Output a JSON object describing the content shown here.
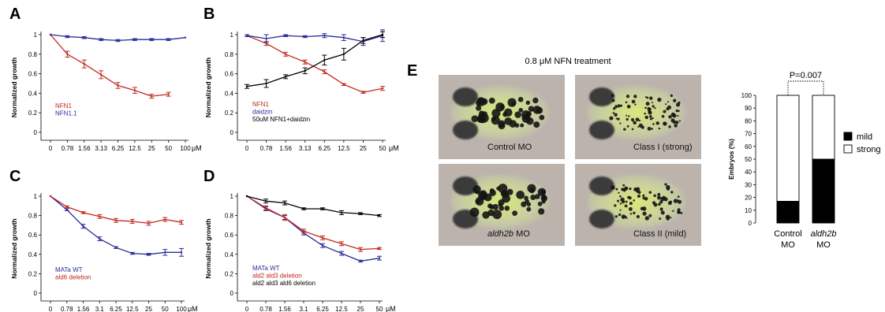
{
  "panels": {
    "A": "A",
    "B": "B",
    "C": "C",
    "D": "D",
    "E": "E"
  },
  "treatment_title": "0.8 μM NFN treatment",
  "photos": [
    {
      "label": "Control MO",
      "italic_prefix": ""
    },
    {
      "label": "Class I (strong)",
      "italic_prefix": ""
    },
    {
      "label": " MO",
      "italic_prefix": "aldh2b"
    },
    {
      "label": "Class II (mild)",
      "italic_prefix": ""
    }
  ],
  "colors": {
    "red": "#c0281c",
    "blue": "#2b2b9c",
    "black": "#000000"
  },
  "chart_data": [
    {
      "id": "A",
      "type": "line",
      "ylabel": "Normalized growth",
      "unit": "μM",
      "categories": [
        "0",
        "0.78",
        "1.56",
        "3.13",
        "6.25",
        "12.5",
        "25",
        "50",
        "100"
      ],
      "yticks": [
        "0",
        "0.2",
        "0.4",
        "0.6",
        "0.8",
        "1"
      ],
      "ylim": [
        0,
        1
      ],
      "series": [
        {
          "name": "NFN1",
          "color": "red",
          "values": [
            1.0,
            0.8,
            0.7,
            0.59,
            0.48,
            0.43,
            0.37,
            0.39,
            null
          ],
          "err": [
            0,
            0.03,
            0.04,
            0.04,
            0.03,
            0.03,
            0.02,
            0.02,
            0
          ]
        },
        {
          "name": "NFN1.1",
          "color": "blue",
          "values": [
            1.0,
            0.98,
            0.97,
            0.95,
            0.94,
            0.95,
            0.95,
            0.95,
            0.97
          ],
          "err": [
            0,
            0.01,
            0.01,
            0.01,
            0.01,
            0.01,
            0.01,
            0.01,
            0
          ]
        }
      ]
    },
    {
      "id": "B",
      "type": "line",
      "ylabel": "Normalized growth",
      "unit": "μM",
      "categories": [
        "0",
        "0.78",
        "1.56",
        "3.13",
        "6.25",
        "12.5",
        "25",
        "50"
      ],
      "yticks": [
        "0",
        "0.2",
        "0.4",
        "0.6",
        "0.8",
        "1"
      ],
      "ylim": [
        0,
        1
      ],
      "series": [
        {
          "name": "NFN1",
          "color": "red",
          "values": [
            0.99,
            0.91,
            0.8,
            0.72,
            0.62,
            0.49,
            0.41,
            0.45
          ],
          "err": [
            0.01,
            0.02,
            0.02,
            0.02,
            0.02,
            0.01,
            0.01,
            0.02
          ]
        },
        {
          "name": "daidzin",
          "color": "blue",
          "values": [
            0.99,
            0.96,
            0.99,
            0.98,
            0.99,
            0.97,
            0.93,
            0.99
          ],
          "err": [
            0.01,
            0.04,
            0.01,
            0.01,
            0.02,
            0.03,
            0.04,
            0.06
          ]
        },
        {
          "name": "50uM NFN1+daidzin",
          "color": "black",
          "values": [
            0.47,
            0.5,
            0.57,
            0.63,
            0.74,
            0.8,
            0.94,
            1.0
          ],
          "err": [
            0.02,
            0.04,
            0.02,
            0.03,
            0.05,
            0.06,
            0.03,
            0.03
          ]
        }
      ]
    },
    {
      "id": "C",
      "type": "line",
      "ylabel": "Normalized growth",
      "unit": "μM",
      "categories": [
        "0",
        "0.78",
        "1.56",
        "3.1",
        "6.25",
        "12.5",
        "25",
        "50",
        "100"
      ],
      "yticks": [
        "0",
        "0.2",
        "0.4",
        "0.6",
        "0.8",
        "1"
      ],
      "ylim": [
        0,
        1
      ],
      "series": [
        {
          "name": "MATa WT",
          "color": "blue",
          "values": [
            1.0,
            0.86,
            0.69,
            0.56,
            0.47,
            0.41,
            0.4,
            0.42,
            0.42
          ],
          "err": [
            0,
            0.01,
            0.02,
            0.02,
            0.01,
            0.01,
            0.01,
            0.03,
            0.04
          ]
        },
        {
          "name": "ald6 deletion",
          "color": "red",
          "values": [
            1.0,
            0.89,
            0.83,
            0.79,
            0.75,
            0.74,
            0.72,
            0.76,
            0.73
          ],
          "err": [
            0,
            0.01,
            0.01,
            0.02,
            0.02,
            0.02,
            0.02,
            0.02,
            0.02
          ]
        }
      ]
    },
    {
      "id": "D",
      "type": "line",
      "ylabel": "Normalized growth",
      "unit": "μM",
      "categories": [
        "0",
        "0.78",
        "1.56",
        "3.1",
        "6.25",
        "12.5",
        "25",
        "50"
      ],
      "yticks": [
        "0",
        "0.2",
        "0.4",
        "0.6",
        "0.8",
        "1"
      ],
      "ylim": [
        0,
        1
      ],
      "series": [
        {
          "name": "MATa WT",
          "color": "blue",
          "values": [
            1.0,
            0.87,
            0.78,
            0.62,
            0.49,
            0.41,
            0.33,
            0.36
          ],
          "err": [
            0,
            0.02,
            0.02,
            0.02,
            0.02,
            0.02,
            0.01,
            0.02
          ]
        },
        {
          "name": "ald2 ald3 deletion",
          "color": "red",
          "values": [
            1.0,
            0.88,
            0.78,
            0.64,
            0.57,
            0.51,
            0.45,
            0.46
          ],
          "err": [
            0,
            0.02,
            0.03,
            0.02,
            0.02,
            0.02,
            0.02,
            0.01
          ]
        },
        {
          "name": "ald2 ald3 ald6 deletion",
          "color": "black",
          "values": [
            1.0,
            0.95,
            0.93,
            0.87,
            0.87,
            0.83,
            0.82,
            0.8
          ],
          "err": [
            0,
            0.02,
            0.02,
            0.01,
            0.01,
            0.02,
            0.01,
            0.01
          ]
        }
      ]
    },
    {
      "id": "E",
      "type": "bar",
      "stacked": true,
      "ylabel": "Embryos (%)",
      "yticks": [
        "0",
        "10",
        "20",
        "30",
        "40",
        "50",
        "60",
        "70",
        "80",
        "90",
        "100"
      ],
      "ylim": [
        0,
        100
      ],
      "categories": [
        {
          "line1": "Control",
          "line2": "MO",
          "italic": false
        },
        {
          "line1": "aldh2b",
          "line2": "MO",
          "italic": true
        }
      ],
      "series": [
        {
          "name": "mild",
          "fill": "black",
          "values": [
            17,
            50
          ]
        },
        {
          "name": "strong",
          "fill": "white",
          "values": [
            83,
            50
          ]
        }
      ],
      "annotation": "P=0.007"
    }
  ]
}
